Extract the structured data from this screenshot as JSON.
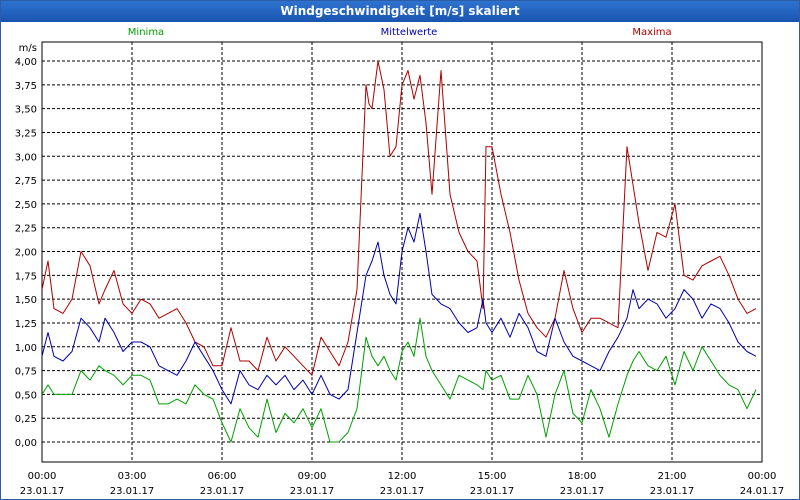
{
  "window": {
    "title": "Windgeschwindigkeit [m/s] skaliert"
  },
  "chart_data": {
    "type": "line",
    "title": "Windgeschwindigkeit [m/s] skaliert",
    "ylabel": "m/s",
    "ylim": [
      0,
      4
    ],
    "yticks": [
      "0,00",
      "0,25",
      "0,50",
      "0,75",
      "1,00",
      "1,25",
      "1,50",
      "1,75",
      "2,00",
      "2,25",
      "2,50",
      "2,75",
      "3,00",
      "3,25",
      "3,50",
      "3,75",
      "4,00"
    ],
    "xlim": [
      0,
      24
    ],
    "xticks": [
      {
        "time": "00:00",
        "date": "23.01.17"
      },
      {
        "time": "03:00",
        "date": "23.01.17"
      },
      {
        "time": "06:00",
        "date": "23.01.17"
      },
      {
        "time": "09:00",
        "date": "23.01.17"
      },
      {
        "time": "12:00",
        "date": "23.01.17"
      },
      {
        "time": "15:00",
        "date": "23.01.17"
      },
      {
        "time": "18:00",
        "date": "23.01.17"
      },
      {
        "time": "21:00",
        "date": "23.01.17"
      },
      {
        "time": "00:00",
        "date": "24.01.17"
      }
    ],
    "legend": [
      {
        "name": "Minima",
        "color": "#00a000"
      },
      {
        "name": "Mittelwerte",
        "color": "#0000b0"
      },
      {
        "name": "Maxima",
        "color": "#b00000"
      }
    ],
    "series": [
      {
        "name": "Maxima",
        "color": "#b00000",
        "x": [
          0,
          0.2,
          0.4,
          0.7,
          1,
          1.3,
          1.6,
          1.9,
          2.1,
          2.4,
          2.7,
          3.0,
          3.3,
          3.6,
          3.9,
          4.2,
          4.5,
          4.8,
          5.1,
          5.4,
          5.7,
          6.0,
          6.3,
          6.6,
          6.9,
          7.2,
          7.5,
          7.8,
          8.1,
          8.4,
          8.7,
          9.0,
          9.3,
          9.6,
          9.9,
          10.2,
          10.5,
          10.8,
          10.9,
          11.0,
          11.2,
          11.4,
          11.6,
          11.8,
          12.0,
          12.2,
          12.4,
          12.6,
          12.8,
          13.0,
          13.3,
          13.6,
          13.9,
          14.2,
          14.5,
          14.7,
          14.8,
          15.0,
          15.3,
          15.6,
          15.9,
          16.2,
          16.5,
          16.8,
          17.1,
          17.4,
          17.7,
          18.0,
          18.3,
          18.6,
          18.9,
          19.2,
          19.5,
          19.7,
          19.9,
          20.2,
          20.5,
          20.8,
          21.1,
          21.4,
          21.7,
          22.0,
          22.3,
          22.6,
          22.9,
          23.2,
          23.5,
          23.8
        ],
        "values": [
          1.6,
          1.9,
          1.4,
          1.35,
          1.5,
          2.0,
          1.85,
          1.45,
          1.6,
          1.8,
          1.45,
          1.35,
          1.5,
          1.45,
          1.3,
          1.35,
          1.4,
          1.25,
          1.05,
          1.0,
          0.8,
          0.8,
          1.2,
          0.85,
          0.85,
          0.75,
          1.1,
          0.85,
          1.0,
          0.9,
          0.8,
          0.7,
          1.1,
          0.95,
          0.8,
          1.05,
          1.6,
          3.75,
          3.55,
          3.5,
          4.0,
          3.7,
          3.0,
          3.1,
          3.75,
          3.9,
          3.6,
          3.85,
          3.35,
          2.6,
          3.9,
          2.6,
          2.2,
          2.0,
          1.9,
          1.4,
          3.1,
          3.1,
          2.6,
          2.2,
          1.7,
          1.35,
          1.2,
          1.1,
          1.3,
          1.8,
          1.4,
          1.15,
          1.3,
          1.3,
          1.25,
          1.2,
          3.1,
          2.7,
          2.3,
          1.8,
          2.2,
          2.15,
          2.5,
          1.75,
          1.7,
          1.85,
          1.9,
          1.95,
          1.75,
          1.5,
          1.35,
          1.4
        ]
      },
      {
        "name": "Mittelwerte",
        "color": "#0000b0",
        "x": [
          0,
          0.2,
          0.4,
          0.7,
          1,
          1.3,
          1.6,
          1.9,
          2.1,
          2.4,
          2.7,
          3.0,
          3.3,
          3.6,
          3.9,
          4.2,
          4.5,
          4.8,
          5.1,
          5.4,
          5.7,
          6.0,
          6.3,
          6.6,
          6.9,
          7.2,
          7.5,
          7.8,
          8.1,
          8.4,
          8.7,
          9.0,
          9.3,
          9.6,
          9.9,
          10.2,
          10.5,
          10.8,
          11.0,
          11.2,
          11.4,
          11.6,
          11.8,
          12.0,
          12.2,
          12.4,
          12.6,
          12.8,
          13.0,
          13.3,
          13.6,
          13.9,
          14.2,
          14.5,
          14.7,
          14.8,
          15.0,
          15.3,
          15.6,
          15.9,
          16.2,
          16.5,
          16.8,
          17.1,
          17.4,
          17.7,
          18.0,
          18.3,
          18.6,
          18.9,
          19.2,
          19.5,
          19.7,
          19.9,
          20.2,
          20.5,
          20.8,
          21.1,
          21.4,
          21.7,
          22.0,
          22.3,
          22.6,
          22.9,
          23.2,
          23.5,
          23.8
        ],
        "values": [
          0.9,
          1.15,
          0.9,
          0.85,
          0.95,
          1.3,
          1.2,
          1.05,
          1.3,
          1.15,
          0.95,
          1.05,
          1.05,
          1.0,
          0.8,
          0.75,
          0.7,
          0.85,
          1.05,
          0.9,
          0.75,
          0.55,
          0.4,
          0.75,
          0.6,
          0.55,
          0.7,
          0.6,
          0.7,
          0.55,
          0.65,
          0.5,
          0.7,
          0.5,
          0.45,
          0.55,
          1.15,
          1.75,
          1.9,
          2.1,
          1.75,
          1.55,
          1.45,
          2.0,
          2.25,
          2.1,
          2.4,
          2.0,
          1.55,
          1.45,
          1.4,
          1.25,
          1.15,
          1.2,
          1.5,
          1.25,
          1.15,
          1.3,
          1.1,
          1.35,
          1.2,
          0.95,
          0.9,
          1.3,
          1.05,
          0.9,
          0.85,
          0.8,
          0.75,
          0.95,
          1.1,
          1.3,
          1.6,
          1.4,
          1.5,
          1.45,
          1.3,
          1.4,
          1.6,
          1.5,
          1.3,
          1.45,
          1.4,
          1.25,
          1.05,
          0.95,
          0.9
        ]
      },
      {
        "name": "Minima",
        "color": "#00a000",
        "x": [
          0,
          0.2,
          0.4,
          0.7,
          1,
          1.3,
          1.6,
          1.9,
          2.1,
          2.4,
          2.7,
          3.0,
          3.3,
          3.6,
          3.9,
          4.2,
          4.5,
          4.8,
          5.1,
          5.4,
          5.7,
          6.0,
          6.3,
          6.6,
          6.9,
          7.2,
          7.5,
          7.8,
          8.1,
          8.4,
          8.7,
          9.0,
          9.3,
          9.6,
          9.9,
          10.2,
          10.5,
          10.8,
          11.0,
          11.2,
          11.4,
          11.6,
          11.8,
          12.0,
          12.2,
          12.4,
          12.6,
          12.8,
          13.0,
          13.3,
          13.6,
          13.9,
          14.2,
          14.5,
          14.7,
          14.8,
          15.0,
          15.3,
          15.6,
          15.9,
          16.2,
          16.5,
          16.8,
          17.1,
          17.4,
          17.7,
          18.0,
          18.3,
          18.6,
          18.9,
          19.2,
          19.5,
          19.7,
          19.9,
          20.2,
          20.5,
          20.8,
          21.1,
          21.4,
          21.7,
          22.0,
          22.3,
          22.6,
          22.9,
          23.2,
          23.5,
          23.8
        ],
        "values": [
          0.5,
          0.6,
          0.5,
          0.5,
          0.5,
          0.75,
          0.65,
          0.8,
          0.75,
          0.7,
          0.6,
          0.7,
          0.7,
          0.65,
          0.4,
          0.4,
          0.45,
          0.4,
          0.6,
          0.5,
          0.45,
          0.2,
          0.0,
          0.35,
          0.15,
          0.05,
          0.45,
          0.1,
          0.3,
          0.2,
          0.35,
          0.15,
          0.35,
          0.0,
          0.0,
          0.1,
          0.35,
          1.1,
          0.9,
          0.8,
          0.9,
          0.75,
          0.65,
          0.95,
          1.05,
          0.9,
          1.3,
          0.9,
          0.75,
          0.6,
          0.45,
          0.7,
          0.65,
          0.6,
          0.55,
          0.75,
          0.65,
          0.7,
          0.45,
          0.45,
          0.7,
          0.5,
          0.05,
          0.5,
          0.75,
          0.3,
          0.2,
          0.55,
          0.35,
          0.05,
          0.4,
          0.7,
          0.85,
          0.95,
          0.8,
          0.75,
          0.9,
          0.6,
          0.95,
          0.75,
          1.0,
          0.85,
          0.7,
          0.6,
          0.55,
          0.35,
          0.55
        ]
      }
    ]
  }
}
